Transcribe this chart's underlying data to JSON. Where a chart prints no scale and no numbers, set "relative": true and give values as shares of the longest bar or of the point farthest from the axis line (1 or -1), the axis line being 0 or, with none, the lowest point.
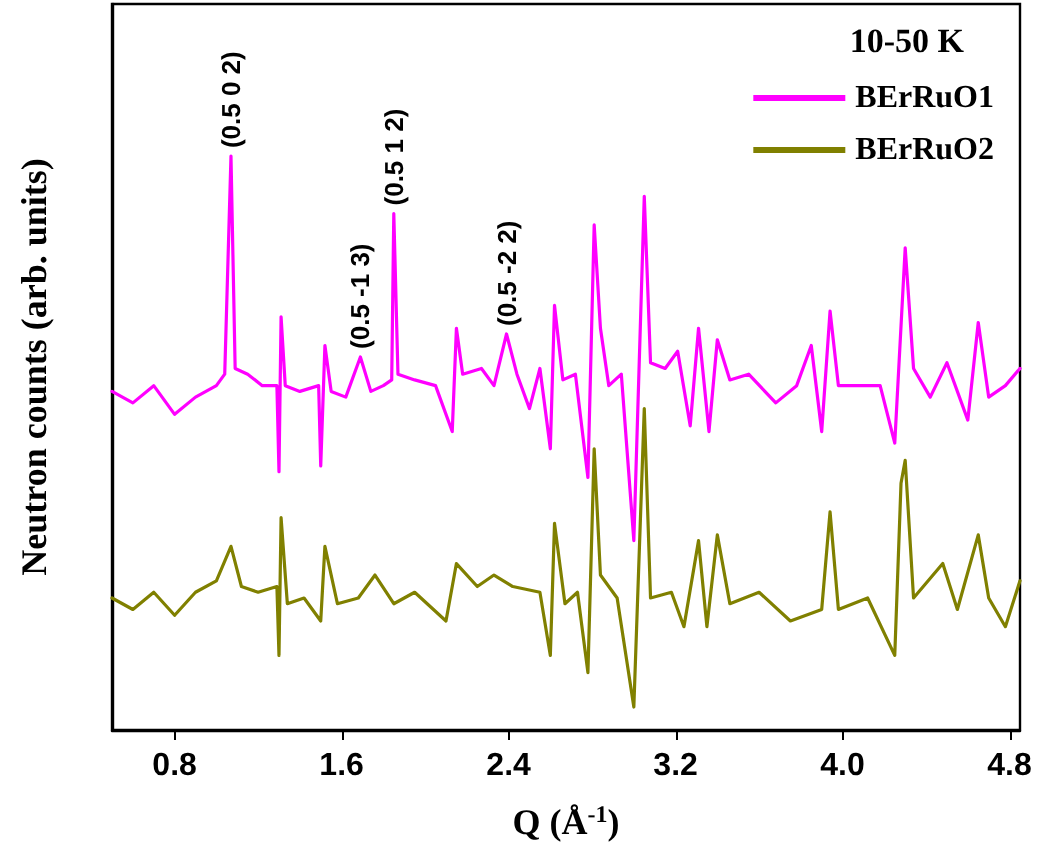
{
  "chart_data": {
    "type": "line",
    "relative": true,
    "xlabel": "Q (Å$^{-1}$)",
    "ylabel": "Neutron counts (arb. units)",
    "legend_title": "10-50 K",
    "legend": "top right",
    "grid": false,
    "marker": "none",
    "line_style": "solid",
    "tick_labels": "x",
    "xlim": [
      0.5,
      4.85
    ],
    "xticks": [
      0.8,
      1.6,
      2.4,
      3.2,
      {
        "value": 4,
        "label": "4.0"
      },
      4.8
    ],
    "annotations": [
      {
        "text": "(0.5 0 2)",
        "x": 1.07,
        "y": 1.0
      },
      {
        "text": "(0.5 -1 3)",
        "x": 1.69,
        "y": 0.65
      },
      {
        "text": "(0.5 1 2)",
        "x": 1.85,
        "y": 0.9
      },
      {
        "text": "(0.5 -2 2)",
        "x": 2.39,
        "y": 0.69
      }
    ],
    "series": [
      {
        "name": "BErRuO1",
        "color": "#ff00ff",
        "x": [
          0.5,
          0.6,
          0.7,
          0.8,
          0.9,
          1.0,
          1.04,
          1.07,
          1.09,
          1.15,
          1.22,
          1.29,
          1.3,
          1.31,
          1.33,
          1.4,
          1.49,
          1.5,
          1.52,
          1.55,
          1.62,
          1.69,
          1.74,
          1.8,
          1.84,
          1.85,
          1.87,
          1.95,
          2.05,
          2.13,
          2.15,
          2.18,
          2.27,
          2.33,
          2.39,
          2.44,
          2.5,
          2.55,
          2.6,
          2.62,
          2.66,
          2.72,
          2.78,
          2.81,
          2.84,
          2.88,
          2.94,
          3.0,
          3.05,
          3.08,
          3.15,
          3.21,
          3.27,
          3.31,
          3.36,
          3.4,
          3.46,
          3.55,
          3.68,
          3.78,
          3.85,
          3.9,
          3.94,
          3.98,
          4.08,
          4.18,
          4.25,
          4.3,
          4.34,
          4.42,
          4.5,
          4.6,
          4.65,
          4.7,
          4.78,
          4.85
        ],
        "values": [
          0.59,
          0.57,
          0.6,
          0.55,
          0.58,
          0.6,
          0.62,
          1.0,
          0.63,
          0.62,
          0.6,
          0.6,
          0.45,
          0.72,
          0.6,
          0.59,
          0.6,
          0.46,
          0.67,
          0.59,
          0.58,
          0.65,
          0.59,
          0.6,
          0.61,
          0.9,
          0.62,
          0.61,
          0.6,
          0.52,
          0.7,
          0.62,
          0.63,
          0.6,
          0.69,
          0.62,
          0.56,
          0.63,
          0.49,
          0.74,
          0.61,
          0.62,
          0.44,
          0.88,
          0.7,
          0.6,
          0.62,
          0.33,
          0.93,
          0.64,
          0.63,
          0.66,
          0.53,
          0.7,
          0.52,
          0.68,
          0.61,
          0.62,
          0.57,
          0.6,
          0.67,
          0.52,
          0.73,
          0.6,
          0.6,
          0.6,
          0.5,
          0.84,
          0.63,
          0.58,
          0.64,
          0.54,
          0.71,
          0.58,
          0.6,
          0.63
        ]
      },
      {
        "name": "BErRuO2",
        "color": "#808000",
        "x": [
          0.5,
          0.6,
          0.7,
          0.8,
          0.9,
          1.0,
          1.07,
          1.12,
          1.2,
          1.29,
          1.3,
          1.31,
          1.34,
          1.42,
          1.5,
          1.52,
          1.58,
          1.68,
          1.76,
          1.85,
          1.95,
          2.1,
          2.15,
          2.25,
          2.33,
          2.42,
          2.55,
          2.6,
          2.62,
          2.67,
          2.73,
          2.78,
          2.81,
          2.84,
          2.92,
          3.0,
          3.05,
          3.08,
          3.18,
          3.24,
          3.31,
          3.35,
          3.4,
          3.46,
          3.6,
          3.75,
          3.9,
          3.94,
          3.98,
          4.12,
          4.25,
          4.28,
          4.3,
          4.34,
          4.48,
          4.55,
          4.65,
          4.7,
          4.78,
          4.85
        ],
        "values": [
          0.23,
          0.21,
          0.24,
          0.2,
          0.24,
          0.26,
          0.32,
          0.25,
          0.24,
          0.25,
          0.13,
          0.37,
          0.22,
          0.23,
          0.19,
          0.32,
          0.22,
          0.23,
          0.27,
          0.22,
          0.24,
          0.19,
          0.29,
          0.25,
          0.27,
          0.25,
          0.24,
          0.13,
          0.36,
          0.22,
          0.24,
          0.1,
          0.49,
          0.27,
          0.23,
          0.04,
          0.56,
          0.23,
          0.24,
          0.18,
          0.33,
          0.18,
          0.34,
          0.22,
          0.24,
          0.19,
          0.21,
          0.38,
          0.21,
          0.23,
          0.13,
          0.43,
          0.47,
          0.23,
          0.29,
          0.21,
          0.34,
          0.23,
          0.18,
          0.26
        ]
      }
    ]
  }
}
